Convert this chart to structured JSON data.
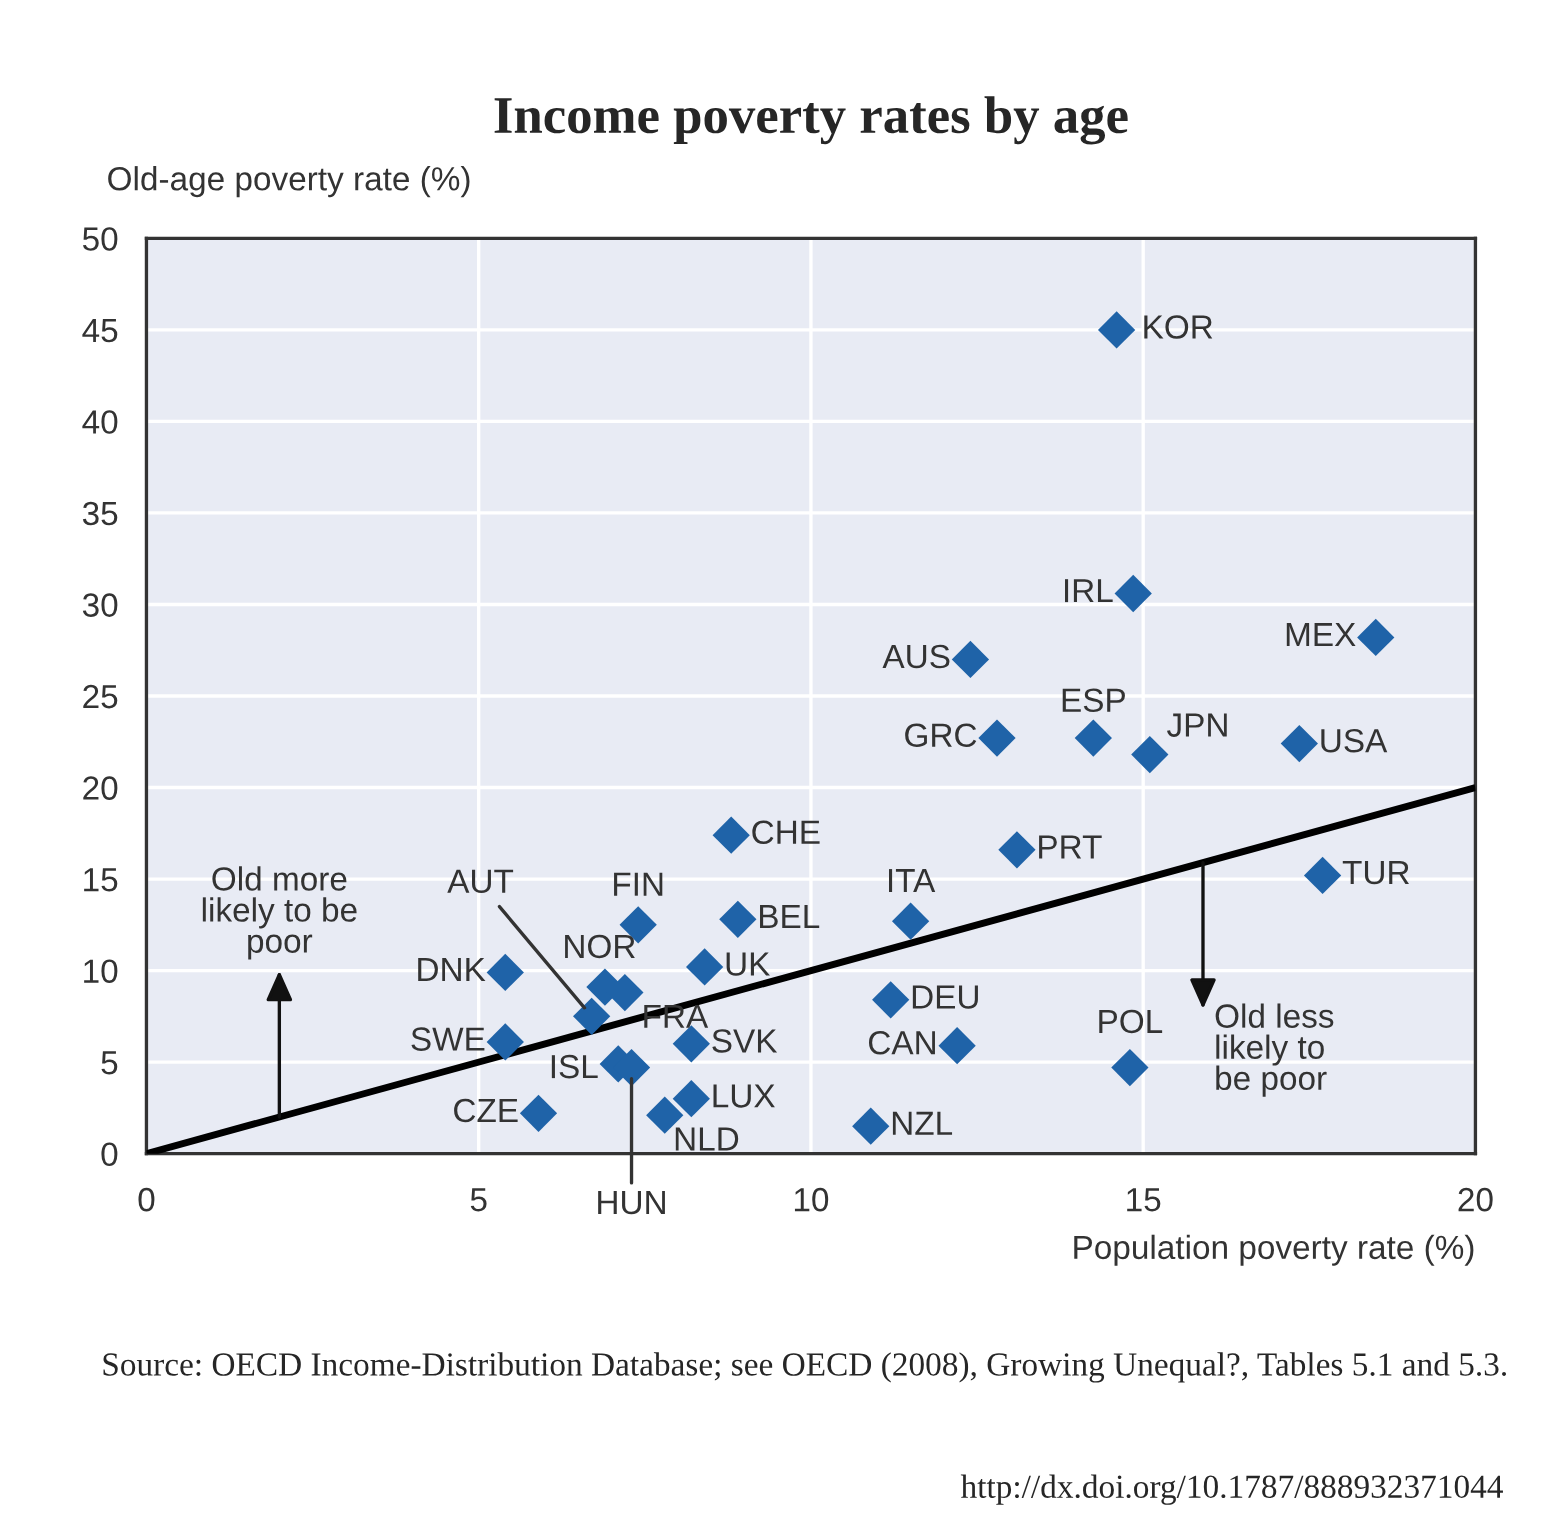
{
  "chart_data": {
    "type": "scatter",
    "title": "Income poverty rates by age",
    "xlabel": "Population poverty rate (%)",
    "ylabel": "Old-age poverty rate (%)",
    "xlim": [
      0,
      20
    ],
    "ylim": [
      0,
      50
    ],
    "xticks": [
      0,
      5,
      10,
      15,
      20
    ],
    "yticks": [
      0,
      5,
      10,
      15,
      20,
      25,
      30,
      35,
      40,
      45,
      50
    ],
    "grid": true,
    "marker": "diamond",
    "legend": false,
    "series": [
      {
        "color": "#1f63a8",
        "x": [
          14.6,
          14.85,
          18.5,
          12.4,
          14.25,
          12.8,
          15.1,
          17.35,
          13.1,
          17.7,
          11.5,
          11.2,
          12.2,
          14.8,
          10.9,
          8.8,
          8.9,
          7.4,
          8.4,
          5.4,
          6.9,
          7.2,
          6.7,
          5.4,
          8.2,
          7.1,
          7.3,
          8.2,
          7.8,
          5.9
        ],
        "values": [
          45,
          30.6,
          28.2,
          27,
          22.7,
          22.7,
          21.8,
          22.4,
          16.6,
          15.2,
          12.7,
          8.4,
          5.9,
          4.7,
          1.5,
          17.4,
          12.8,
          12.5,
          10.2,
          9.9,
          9.1,
          8.8,
          7.5,
          6.1,
          6.0,
          4.9,
          4.7,
          3.0,
          2.1,
          2.2
        ]
      },
      {
        "type": "line",
        "marker": "none",
        "color": "#000000",
        "x": [
          0,
          20
        ],
        "values": [
          0,
          20
        ]
      }
    ],
    "annotations": [
      {
        "text": "KOR",
        "x": 14.6,
        "y": 45
      },
      {
        "text": "IRL",
        "x": 14.85,
        "y": 30.6
      },
      {
        "text": "MEX",
        "x": 18.5,
        "y": 28.2
      },
      {
        "text": "AUS",
        "x": 12.4,
        "y": 27
      },
      {
        "text": "ESP",
        "x": 14.25,
        "y": 22.7
      },
      {
        "text": "GRC",
        "x": 12.8,
        "y": 22.7
      },
      {
        "text": "JPN",
        "x": 15.1,
        "y": 21.8
      },
      {
        "text": "USA",
        "x": 17.35,
        "y": 22.4
      },
      {
        "text": "PRT",
        "x": 13.1,
        "y": 16.6
      },
      {
        "text": "TUR",
        "x": 17.7,
        "y": 15.2
      },
      {
        "text": "ITA",
        "x": 11.5,
        "y": 12.7
      },
      {
        "text": "DEU",
        "x": 11.2,
        "y": 8.4
      },
      {
        "text": "CAN",
        "x": 12.2,
        "y": 5.9
      },
      {
        "text": "POL",
        "x": 14.8,
        "y": 4.7
      },
      {
        "text": "NZL",
        "x": 10.9,
        "y": 1.5
      },
      {
        "text": "CHE",
        "x": 8.8,
        "y": 17.4
      },
      {
        "text": "BEL",
        "x": 8.9,
        "y": 12.8
      },
      {
        "text": "FIN",
        "x": 7.4,
        "y": 12.5
      },
      {
        "text": "UK",
        "x": 8.4,
        "y": 10.2
      },
      {
        "text": "DNK",
        "x": 5.4,
        "y": 9.9
      },
      {
        "text": "NOR",
        "x": 6.9,
        "y": 9.1
      },
      {
        "text": "FRA",
        "x": 7.2,
        "y": 8.8
      },
      {
        "text": "AUT",
        "x": 6.7,
        "y": 7.5
      },
      {
        "text": "SWE",
        "x": 5.4,
        "y": 6.1
      },
      {
        "text": "SVK",
        "x": 8.2,
        "y": 6.0
      },
      {
        "text": "ISL",
        "x": 7.1,
        "y": 4.9
      },
      {
        "text": "HUN",
        "x": 7.3,
        "y": 4.7
      },
      {
        "text": "LUX",
        "x": 8.2,
        "y": 3.0
      },
      {
        "text": "NLD",
        "x": 7.8,
        "y": 2.1
      },
      {
        "text": "CZE",
        "x": 5.9,
        "y": 2.2
      },
      {
        "text": "Old more likely to be poor",
        "x": 2,
        "y": 2
      },
      {
        "text": "Old less likely to be poor",
        "x": 15.9,
        "y": 15.9
      },
      "Source: OECD Income-Distribution Database; see OECD (2008), Growing Unequal?, Tables 5.1 and 5.3.",
      "http://dx.doi.org/10.1787/888932371044"
    ]
  }
}
